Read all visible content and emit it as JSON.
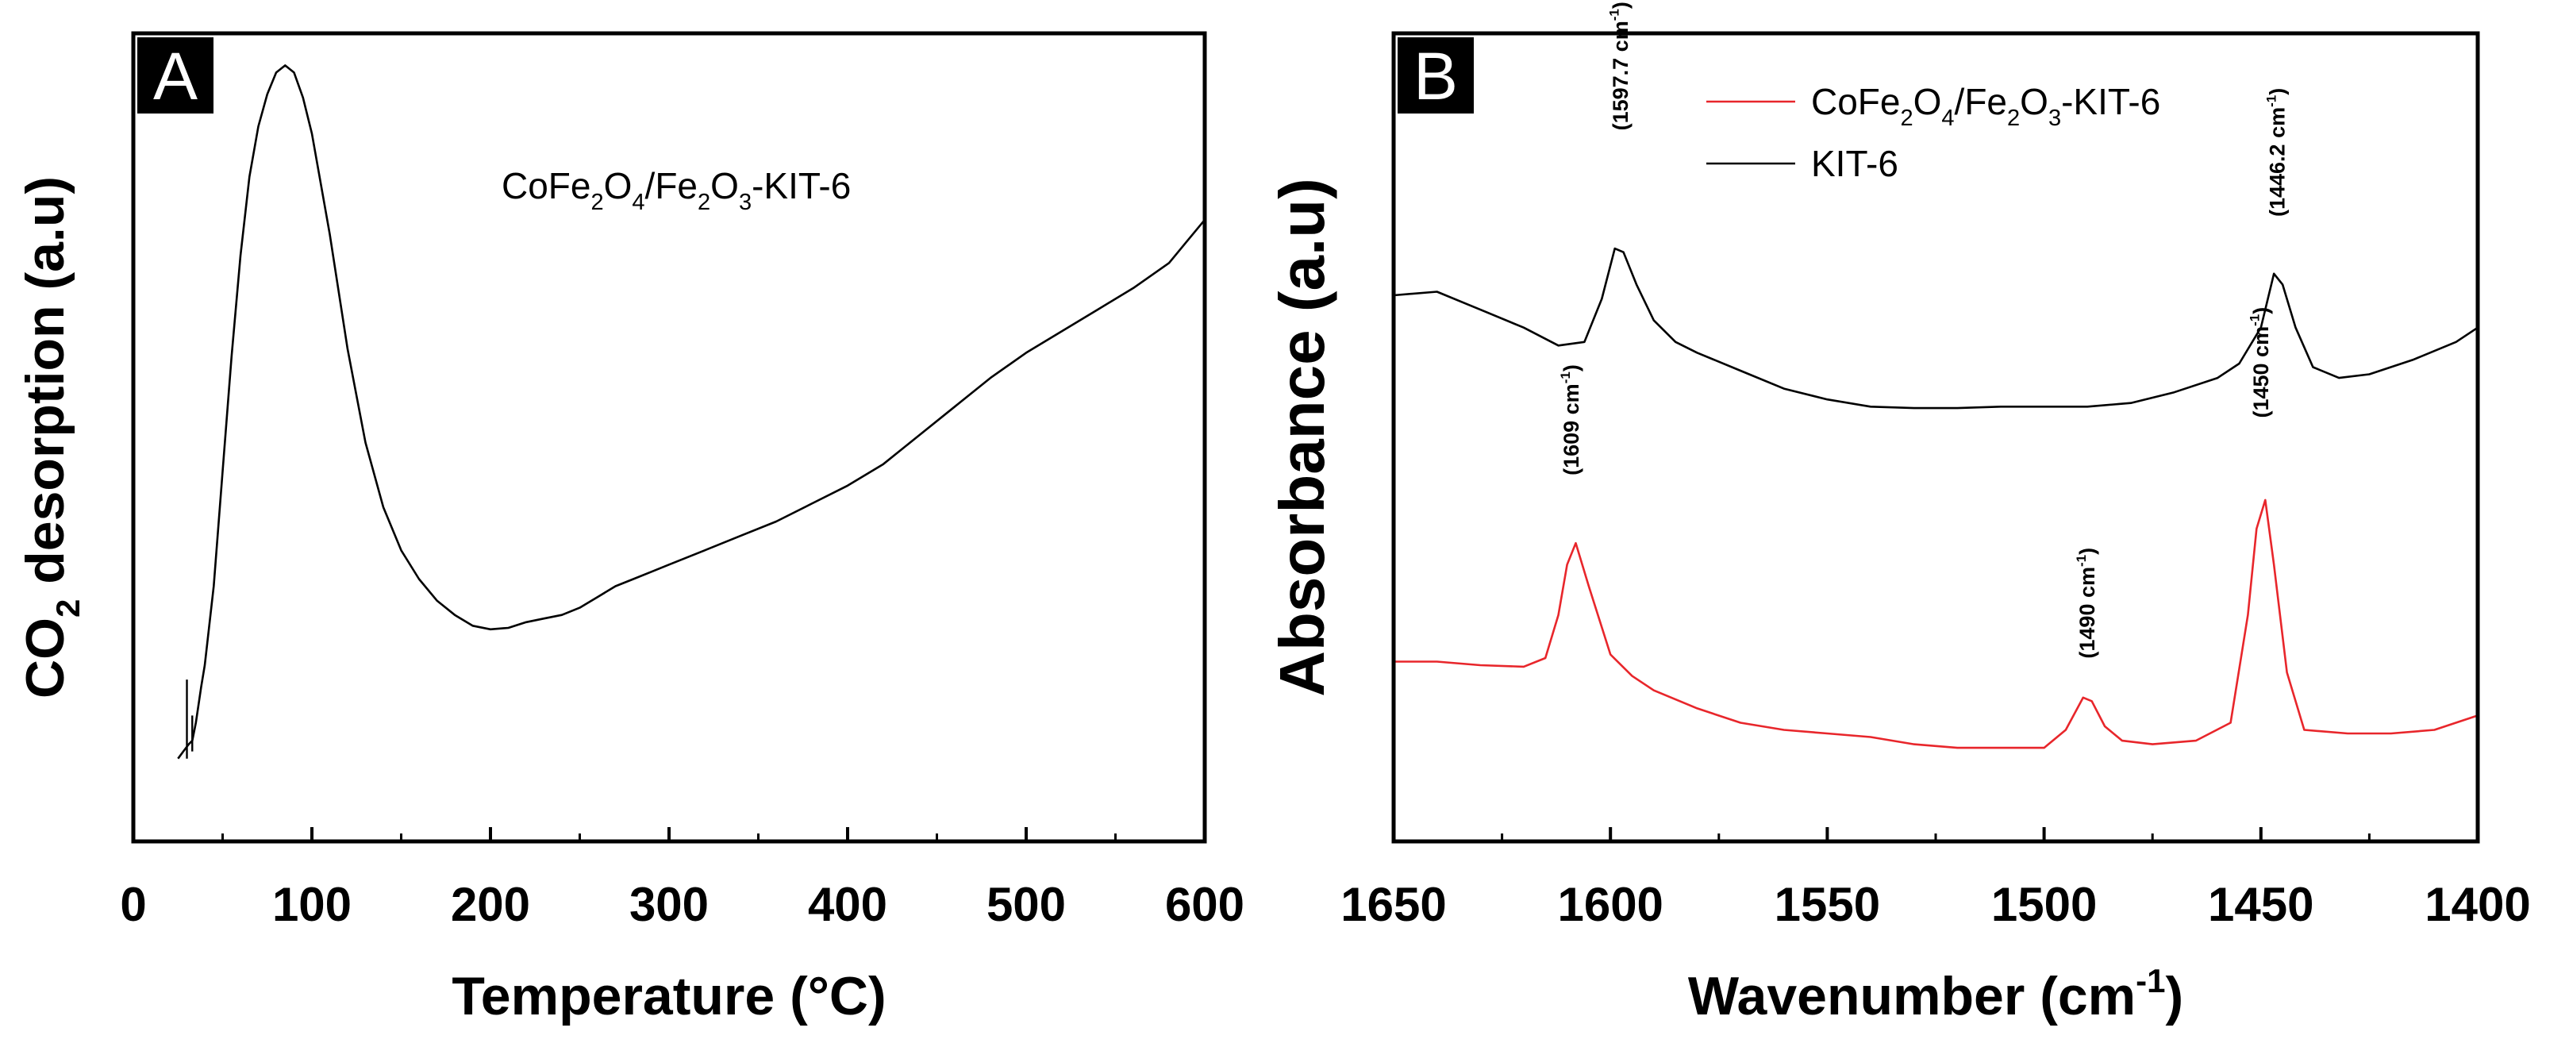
{
  "colors": {
    "kit6": "#000000",
    "composite": "#e8262b",
    "panel_label_bg": "#000000"
  },
  "chart_data": [
    {
      "panel": "A",
      "type": "line",
      "title": "",
      "xlabel": "Temperature (°C)",
      "ylabel": "CO2 desorption (a.u)",
      "ylabel_parts": {
        "before": "CO",
        "sub": "2",
        "after": " desorption (a.u)"
      },
      "xlim": [
        0,
        600
      ],
      "ylim": [
        0,
        100
      ],
      "xticks": [
        "0",
        "100",
        "200",
        "300",
        "400",
        "500",
        "600"
      ],
      "annotation": {
        "text": "CoFe2O4/Fe2O3-KIT-6",
        "parts": [
          [
            "CoFe",
            ""
          ],
          [
            "2",
            "sub"
          ],
          [
            "O",
            ""
          ],
          [
            "4",
            "sub"
          ],
          [
            "/Fe",
            ""
          ],
          [
            "2",
            "sub"
          ],
          [
            "O",
            ""
          ],
          [
            "3",
            "sub"
          ],
          [
            "-KIT-6",
            ""
          ]
        ]
      },
      "series": [
        {
          "name": "CoFe2O4/Fe2O3-KIT-6",
          "color": "#000000",
          "x": [
            25,
            28,
            31,
            33,
            35,
            38,
            40,
            45,
            50,
            55,
            60,
            65,
            70,
            75,
            80,
            85,
            90,
            95,
            100,
            110,
            120,
            130,
            140,
            150,
            160,
            170,
            180,
            190,
            200,
            210,
            220,
            230,
            240,
            250,
            260,
            270,
            280,
            290,
            300,
            320,
            340,
            360,
            380,
            400,
            420,
            440,
            460,
            480,
            500,
            520,
            540,
            560,
            580,
            590,
            600
          ],
          "y": [
            6,
            7,
            8,
            8.5,
            11,
            16,
            19,
            30,
            46,
            62,
            76,
            87,
            94,
            98.5,
            101.5,
            102.5,
            101.5,
            98,
            93,
            79,
            63,
            50,
            41,
            35,
            31,
            28,
            26,
            24.5,
            24,
            24.2,
            25,
            25.5,
            26,
            27,
            28.5,
            30,
            31,
            32,
            33,
            35,
            37,
            39,
            41.5,
            44,
            47,
            51,
            55,
            59,
            62.5,
            65.5,
            68.5,
            71.5,
            75,
            78,
            81
          ]
        }
      ]
    },
    {
      "panel": "B",
      "type": "line",
      "title": "",
      "xlabel": "Wavenumber (cm-1)",
      "xlabel_parts": {
        "before": "Wavenumber (cm",
        "sup": "-1",
        "after": ")"
      },
      "ylabel": "Absorbance (a.u)",
      "xlim": [
        1650,
        1400
      ],
      "ylim": [
        0,
        100
      ],
      "xticks": [
        "1650",
        "1600",
        "1550",
        "1500",
        "1450",
        "1400"
      ],
      "legend": {
        "position": "top-center",
        "entries": [
          {
            "parts": [
              [
                "CoFe",
                ""
              ],
              [
                "2",
                "sub"
              ],
              [
                "O",
                ""
              ],
              [
                "4",
                "sub"
              ],
              [
                "/Fe",
                ""
              ],
              [
                "2",
                "sub"
              ],
              [
                "O",
                ""
              ],
              [
                "3",
                "sub"
              ],
              [
                "-KIT-6",
                ""
              ]
            ],
            "color": "#e8262b"
          },
          {
            "parts": [
              [
                "KIT-6",
                ""
              ]
            ],
            "color": "#000000"
          }
        ]
      },
      "peak_labels": [
        {
          "x": 1597.7,
          "y": 91,
          "text": "(1597.7 cm-1)",
          "base": "(1597.7 cm",
          "sup": "-1",
          "close": ")"
        },
        {
          "x": 1446.2,
          "y": 79,
          "text": "(1446.2 cm-1)",
          "base": "(1446.2 cm",
          "sup": "-1",
          "close": ")"
        },
        {
          "x": 1609,
          "y": 43,
          "text": "(1609 cm-1)",
          "base": "(1609 cm",
          "sup": "-1",
          "close": ")"
        },
        {
          "x": 1490,
          "y": 17.5,
          "text": "(1490 cm-1)",
          "base": "(1490 cm",
          "sup": "-1",
          "close": ")"
        },
        {
          "x": 1450,
          "y": 51,
          "text": "(1450 cm-1)",
          "base": "(1450 cm",
          "sup": "-1",
          "close": ")"
        }
      ],
      "series": [
        {
          "name": "KIT-6",
          "color": "#000000",
          "x": [
            1650,
            1640,
            1630,
            1620,
            1612,
            1606,
            1602,
            1599,
            1597,
            1594,
            1590,
            1585,
            1580,
            1570,
            1560,
            1550,
            1540,
            1530,
            1520,
            1510,
            1500,
            1490,
            1480,
            1470,
            1460,
            1455,
            1450,
            1447,
            1445,
            1442,
            1438,
            1432,
            1425,
            1415,
            1405,
            1400
          ],
          "y": [
            70.5,
            71,
            68.5,
            66,
            63.5,
            64,
            70,
            77,
            76.5,
            72,
            67,
            64,
            62.5,
            60,
            57.5,
            56,
            55,
            54.8,
            54.8,
            55,
            55,
            55,
            55.5,
            57,
            59,
            61,
            66,
            73.5,
            72,
            66,
            60.5,
            59,
            59.5,
            61.5,
            64,
            66
          ]
        },
        {
          "name": "CoFe2O4/Fe2O3-KIT-6",
          "color": "#e8262b",
          "x": [
            1650,
            1640,
            1630,
            1620,
            1615,
            1612,
            1610,
            1608,
            1605,
            1600,
            1595,
            1590,
            1580,
            1570,
            1560,
            1550,
            1540,
            1530,
            1520,
            1510,
            1500,
            1495,
            1491,
            1489,
            1486,
            1482,
            1475,
            1465,
            1457,
            1453,
            1451,
            1449,
            1447,
            1444,
            1440,
            1430,
            1420,
            1410,
            1400
          ],
          "y": [
            19.5,
            19.5,
            19,
            18.8,
            20,
            26,
            33,
            36,
            30,
            20.5,
            17.5,
            15.5,
            13,
            11,
            10,
            9.5,
            9,
            8,
            7.5,
            7.5,
            7.5,
            10,
            14.5,
            14,
            10.5,
            8.5,
            8,
            8.5,
            11,
            26,
            38,
            42,
            33,
            18,
            10,
            9.5,
            9.5,
            10,
            12
          ]
        }
      ]
    }
  ]
}
